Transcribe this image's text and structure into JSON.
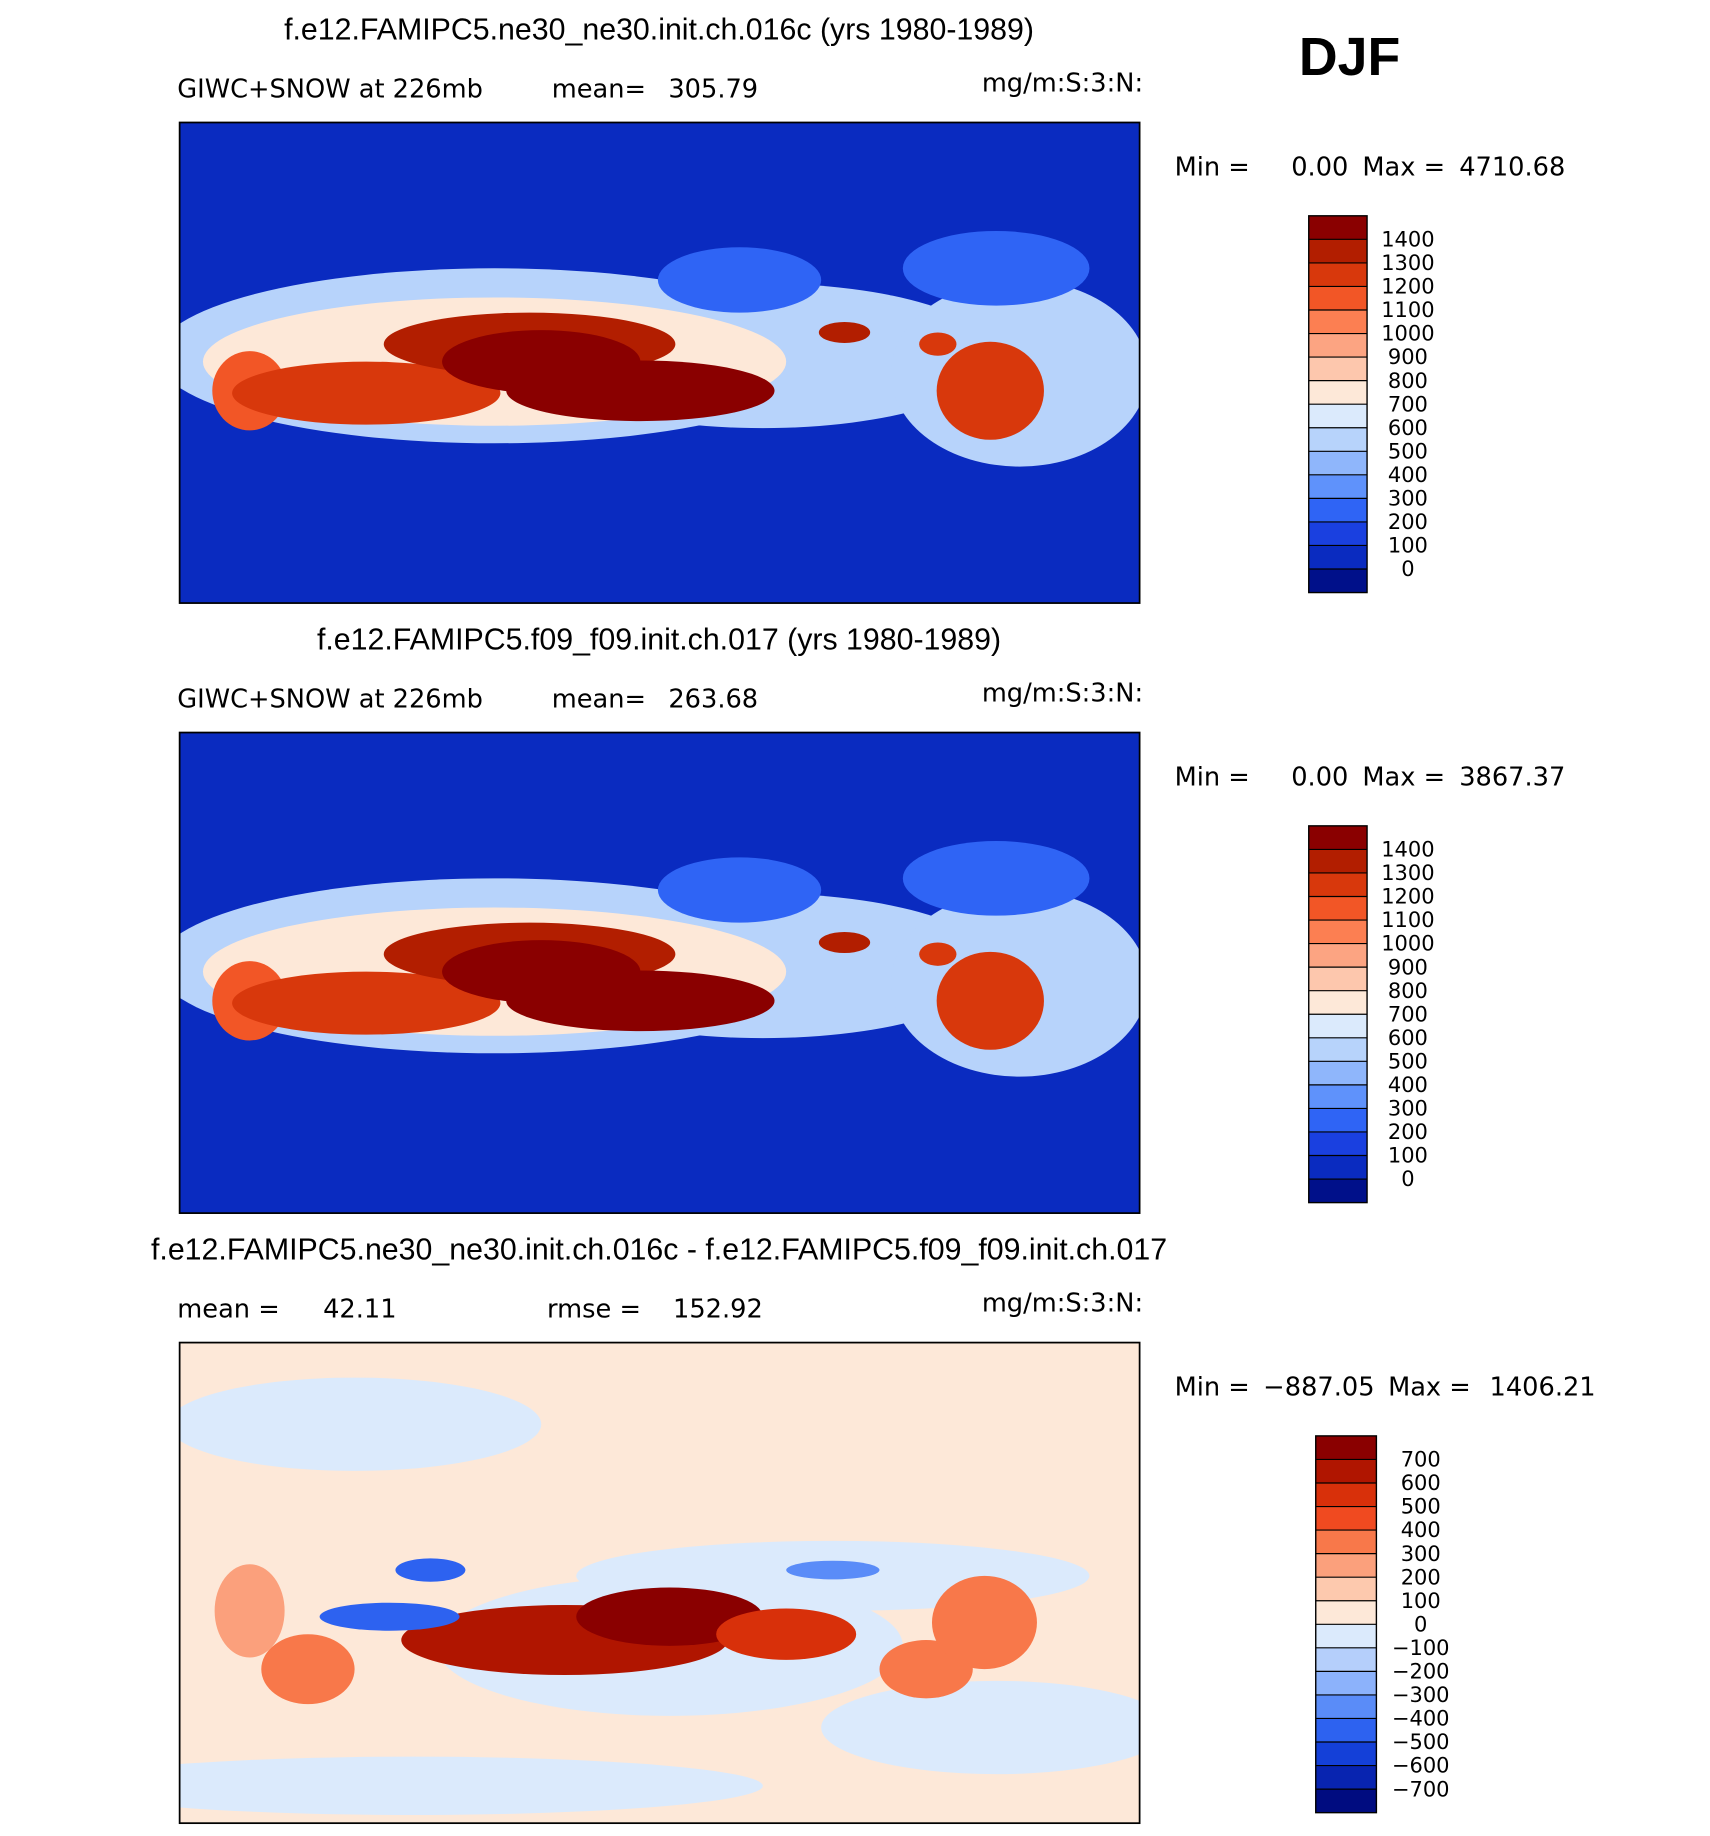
{
  "season": "DJF",
  "chart_data": [
    {
      "type": "contour-map",
      "title": "f.e12.FAMIPC5.ne30_ne30.init.ch.016c (yrs 1980-1989)",
      "left_string": "GIWC+SNOW at 226mb",
      "mean_label": "mean=",
      "mean": 305.79,
      "units": "mg/m:S:3:N:",
      "min_label": "Min =",
      "min": {
        "value": 0,
        "label": "0.00"
      },
      "max_label": "Max =",
      "max": 4710.68,
      "colorbar": {
        "ticks": [
          1400,
          1300,
          1200,
          1100,
          1000,
          900,
          800,
          700,
          600,
          500,
          400,
          300,
          200,
          100,
          0
        ],
        "colors": [
          "#8a0000",
          "#b21e00",
          "#d8380c",
          "#f25626",
          "#fc7f52",
          "#fca482",
          "#fdc7ad",
          "#fde8d8",
          "#dbeafc",
          "#b7d3fb",
          "#8fb6fb",
          "#5f92fb",
          "#2f64f5",
          "#1a40e0",
          "#0a2bc0",
          "#00108a"
        ]
      }
    },
    {
      "type": "contour-map",
      "title": "f.e12.FAMIPC5.f09_f09.init.ch.017 (yrs 1980-1989)",
      "left_string": "GIWC+SNOW at 226mb",
      "mean_label": "mean=",
      "mean": 263.68,
      "units": "mg/m:S:3:N:",
      "min_label": "Min =",
      "min": {
        "value": 0,
        "label": "0.00"
      },
      "max_label": "Max =",
      "max": 3867.37,
      "colorbar": {
        "ticks": [
          1400,
          1300,
          1200,
          1100,
          1000,
          900,
          800,
          700,
          600,
          500,
          400,
          300,
          200,
          100,
          0
        ],
        "colors": [
          "#8a0000",
          "#b21e00",
          "#d8380c",
          "#f25626",
          "#fc7f52",
          "#fca482",
          "#fdc7ad",
          "#fde8d8",
          "#dbeafc",
          "#b7d3fb",
          "#8fb6fb",
          "#5f92fb",
          "#2f64f5",
          "#1a40e0",
          "#0a2bc0",
          "#00108a"
        ]
      }
    },
    {
      "type": "contour-map",
      "title": "f.e12.FAMIPC5.ne30_ne30.init.ch.016c - f.e12.FAMIPC5.f09_f09.init.ch.017",
      "mean_label": "mean =",
      "mean": 42.11,
      "rmse_label": "rmse =",
      "rmse": 152.92,
      "units": "mg/m:S:3:N:",
      "min_label": "Min =",
      "min": {
        "value": -887.05,
        "label": "−887.05"
      },
      "max_label": "Max =",
      "max": 1406.21,
      "colorbar": {
        "ticks": [
          700,
          600,
          500,
          400,
          300,
          200,
          100,
          0,
          {
            "value": -100,
            "label": "−100"
          },
          {
            "value": -200,
            "label": "−200"
          },
          {
            "value": -300,
            "label": "−300"
          },
          {
            "value": -400,
            "label": "−400"
          },
          {
            "value": -500,
            "label": "−500"
          },
          {
            "value": -600,
            "label": "−600"
          },
          {
            "value": -700,
            "label": "−700"
          }
        ],
        "colors": [
          "#8a0000",
          "#b01500",
          "#d8300a",
          "#f04a20",
          "#f8784a",
          "#fba07c",
          "#fdc9ae",
          "#fde8d8",
          "#dbeafc",
          "#b5cffb",
          "#8cb2fb",
          "#5a8cf8",
          "#2d62f0",
          "#1440d8",
          "#0824b0",
          "#000c80"
        ]
      }
    }
  ]
}
